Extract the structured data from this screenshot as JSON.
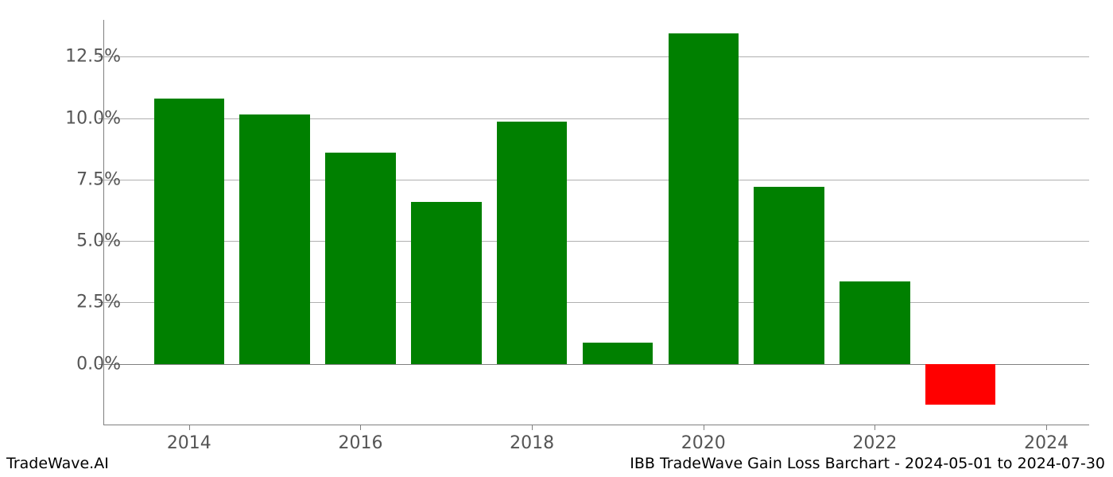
{
  "chart": {
    "type": "bar",
    "background_color": "#ffffff",
    "grid_color": "#b0b0b0",
    "axis_color": "#808080",
    "tick_label_color": "#555555",
    "tick_label_fontsize": 22,
    "x_domain_min": 2013,
    "x_domain_max": 2024.5,
    "y_domain_min": -2.5,
    "y_domain_max": 14.0,
    "y_ticks": [
      {
        "value": 0.0,
        "label": "0.0%"
      },
      {
        "value": 2.5,
        "label": "2.5%"
      },
      {
        "value": 5.0,
        "label": "5.0%"
      },
      {
        "value": 7.5,
        "label": "7.5%"
      },
      {
        "value": 10.0,
        "label": "10.0%"
      },
      {
        "value": 12.5,
        "label": "12.5%"
      }
    ],
    "x_ticks": [
      {
        "value": 2014,
        "label": "2014"
      },
      {
        "value": 2016,
        "label": "2016"
      },
      {
        "value": 2018,
        "label": "2018"
      },
      {
        "value": 2020,
        "label": "2020"
      },
      {
        "value": 2022,
        "label": "2022"
      },
      {
        "value": 2024,
        "label": "2024"
      }
    ],
    "bar_width": 0.82,
    "bars": [
      {
        "x": 2014,
        "value": 10.8,
        "color": "#008000"
      },
      {
        "x": 2015,
        "value": 10.15,
        "color": "#008000"
      },
      {
        "x": 2016,
        "value": 8.6,
        "color": "#008000"
      },
      {
        "x": 2017,
        "value": 6.6,
        "color": "#008000"
      },
      {
        "x": 2018,
        "value": 9.85,
        "color": "#008000"
      },
      {
        "x": 2019,
        "value": 0.85,
        "color": "#008000"
      },
      {
        "x": 2020,
        "value": 13.45,
        "color": "#008000"
      },
      {
        "x": 2021,
        "value": 7.2,
        "color": "#008000"
      },
      {
        "x": 2022,
        "value": 3.35,
        "color": "#008000"
      },
      {
        "x": 2023,
        "value": -1.65,
        "color": "#ff0000"
      }
    ]
  },
  "footer": {
    "left": "TradeWave.AI",
    "right": "IBB TradeWave Gain Loss Barchart - 2024-05-01 to 2024-07-30"
  }
}
